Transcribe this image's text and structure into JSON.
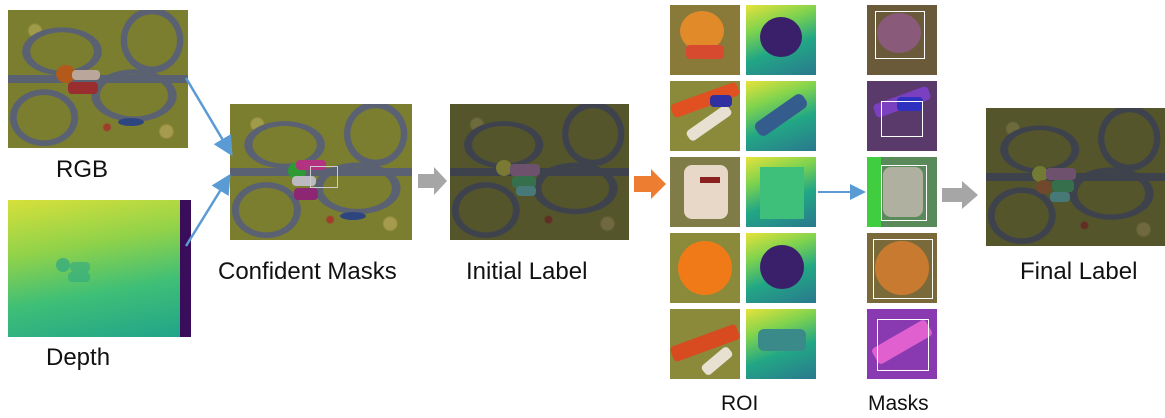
{
  "captions": {
    "rgb": "RGB",
    "depth": "Depth",
    "confident_masks": "Confident Masks",
    "initial_label": "Initial Label",
    "roi": "ROI",
    "masks": "Masks",
    "final_label": "Final Label"
  },
  "colors": {
    "blue_arrow": "#5b9bd5",
    "gray_arrow": "#9e9e9e",
    "orange_arrow": "#ed7d31"
  }
}
